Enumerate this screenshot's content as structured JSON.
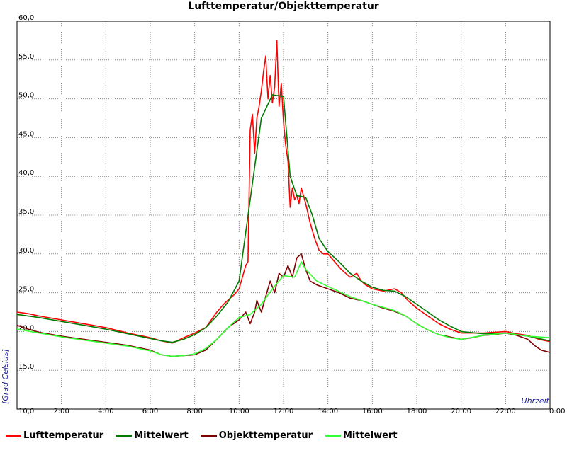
{
  "chart_data": {
    "type": "line",
    "title": "Lufttemperatur/Objekttemperatur",
    "xlabel": "Uhrzeit",
    "ylabel": "[Grad Celsius]",
    "xlim": [
      0,
      24
    ],
    "ylim": [
      10,
      60
    ],
    "x_tick_labels": [
      "0:00",
      "2:00",
      "4:00",
      "6:00",
      "8:00",
      "10:00",
      "12:00",
      "14:00",
      "16:00",
      "18:00",
      "20:00",
      "22:00",
      "0:00"
    ],
    "y_tick_labels": [
      "10,0",
      "15,0",
      "20,0",
      "25,0",
      "30,0",
      "35,0",
      "40,0",
      "45,0",
      "50,0",
      "55,0",
      "60,0"
    ],
    "grid": true,
    "legend_position": "bottom",
    "series": [
      {
        "name": "Lufttemperatur",
        "color": "#ff0000",
        "x": [
          0,
          0.5,
          1,
          2,
          3,
          4,
          5,
          6,
          6.5,
          7,
          7.5,
          8,
          8.5,
          9,
          9.3,
          9.6,
          9.8,
          10,
          10.2,
          10.3,
          10.4,
          10.5,
          10.6,
          10.7,
          10.8,
          10.9,
          11,
          11.1,
          11.2,
          11.3,
          11.4,
          11.5,
          11.6,
          11.7,
          11.8,
          11.9,
          12,
          12.1,
          12.2,
          12.3,
          12.4,
          12.5,
          12.6,
          12.7,
          12.8,
          12.9,
          13,
          13.2,
          13.4,
          13.6,
          13.8,
          14,
          14.3,
          14.6,
          15,
          15.3,
          15.5,
          15.7,
          16,
          16.5,
          17,
          17.3,
          17.6,
          18,
          18.5,
          19,
          19.5,
          20,
          20.5,
          21,
          21.5,
          22,
          22.5,
          23,
          23.5,
          24
        ],
        "values": [
          22.5,
          22.3,
          22.0,
          21.5,
          21.0,
          20.5,
          19.8,
          19.2,
          18.8,
          18.5,
          19.2,
          19.8,
          20.5,
          22.5,
          23.5,
          24.3,
          24.8,
          25.5,
          27.5,
          28.5,
          29.0,
          46.0,
          48.0,
          43.0,
          47.5,
          49.0,
          51.0,
          53.5,
          55.5,
          50.0,
          53.0,
          49.5,
          51.5,
          57.5,
          49.0,
          52.0,
          47.0,
          44.0,
          42.0,
          36.0,
          38.5,
          37.0,
          37.5,
          36.5,
          38.5,
          37.5,
          36.5,
          34.0,
          32.0,
          30.5,
          30.0,
          30.0,
          29.0,
          28.0,
          27.0,
          27.5,
          26.5,
          26.0,
          25.5,
          25.2,
          25.5,
          25.0,
          24.0,
          23.0,
          22.0,
          21.0,
          20.3,
          19.8,
          19.8,
          19.8,
          19.9,
          20.0,
          19.7,
          19.5,
          19.0,
          18.7
        ]
      },
      {
        "name": "Mittelwert",
        "color": "#007a00",
        "x": [
          0,
          1,
          2,
          3,
          4,
          5,
          6,
          6.5,
          7,
          7.5,
          8,
          8.5,
          9,
          9.5,
          10,
          10.5,
          11,
          11.5,
          12,
          12.3,
          12.6,
          13,
          13.3,
          13.6,
          14,
          14.5,
          15,
          15.5,
          16,
          16.5,
          17,
          17.5,
          18,
          18.5,
          19,
          19.5,
          20,
          21,
          22,
          23,
          24
        ],
        "values": [
          22.2,
          21.8,
          21.3,
          20.8,
          20.3,
          19.7,
          19.1,
          18.8,
          18.6,
          19.0,
          19.6,
          20.5,
          22.0,
          23.8,
          26.5,
          37.0,
          47.5,
          50.5,
          50.3,
          40.0,
          37.5,
          37.3,
          35.0,
          32.0,
          30.3,
          29.0,
          27.5,
          26.5,
          25.7,
          25.3,
          25.2,
          24.5,
          23.5,
          22.5,
          21.5,
          20.7,
          20.0,
          19.7,
          19.8,
          19.4,
          18.8
        ]
      },
      {
        "name": "Objekttemperatur",
        "color": "#800000",
        "x": [
          0,
          0.5,
          1,
          2,
          3,
          4,
          5,
          6,
          6.5,
          7,
          7.5,
          8,
          8.5,
          9,
          9.5,
          10,
          10.3,
          10.5,
          10.7,
          10.8,
          11,
          11.2,
          11.4,
          11.6,
          11.8,
          12,
          12.2,
          12.4,
          12.6,
          12.8,
          13,
          13.2,
          13.5,
          14,
          14.5,
          15,
          15.5,
          16,
          16.5,
          17,
          17.5,
          18,
          18.5,
          19,
          19.5,
          20,
          20.5,
          21,
          21.5,
          22,
          22.5,
          23,
          23.3,
          23.6,
          24
        ],
        "values": [
          20.8,
          20.3,
          19.9,
          19.4,
          19.0,
          18.6,
          18.2,
          17.6,
          17.0,
          16.8,
          16.9,
          17.0,
          17.6,
          19.0,
          20.5,
          21.5,
          22.5,
          21.0,
          22.5,
          24.0,
          22.5,
          24.5,
          26.5,
          25.0,
          27.5,
          27.0,
          28.5,
          27.0,
          29.5,
          30.0,
          28.0,
          26.5,
          26.0,
          25.5,
          25.0,
          24.3,
          24.0,
          23.5,
          23.0,
          22.6,
          22.0,
          21.0,
          20.2,
          19.6,
          19.3,
          19.0,
          19.2,
          19.5,
          19.6,
          19.8,
          19.5,
          19.0,
          18.2,
          17.6,
          17.3
        ]
      },
      {
        "name": "Mittelwert",
        "color": "#33ff33",
        "x": [
          0,
          1,
          2,
          3,
          4,
          5,
          6,
          6.5,
          7,
          7.5,
          8,
          8.5,
          9,
          9.5,
          10,
          10.5,
          11,
          11.5,
          12,
          12.5,
          12.8,
          13,
          13.5,
          14,
          15,
          16,
          17,
          17.5,
          18,
          18.5,
          19,
          19.5,
          20,
          21,
          22,
          23,
          24
        ],
        "values": [
          20.3,
          19.8,
          19.3,
          18.9,
          18.5,
          18.1,
          17.5,
          17.0,
          16.8,
          16.9,
          17.1,
          17.8,
          19.0,
          20.5,
          21.8,
          22.2,
          23.5,
          25.5,
          27.2,
          27.0,
          29.0,
          28.0,
          26.5,
          25.8,
          24.5,
          23.5,
          22.7,
          22.0,
          21.0,
          20.2,
          19.6,
          19.2,
          19.0,
          19.5,
          19.8,
          19.4,
          19.2
        ]
      }
    ]
  }
}
